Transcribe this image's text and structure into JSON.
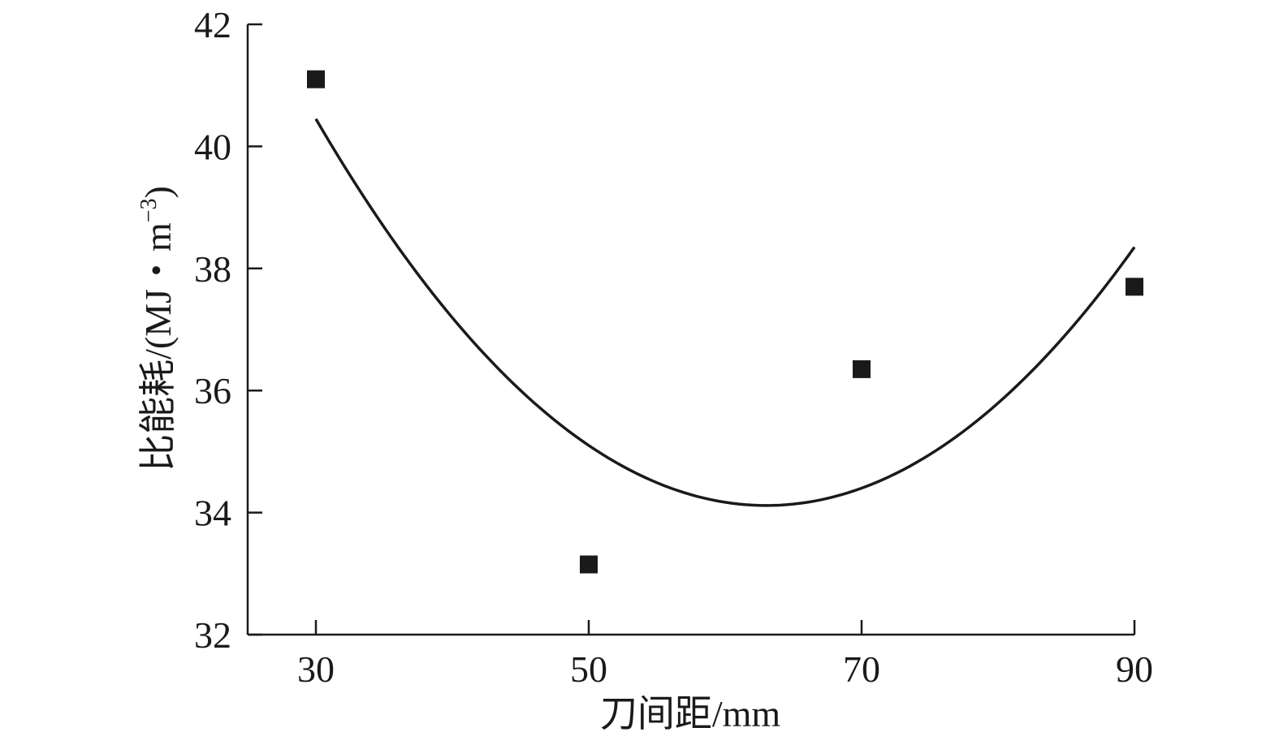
{
  "chart_data": {
    "type": "scatter",
    "x": [
      30,
      50,
      70,
      90
    ],
    "y": [
      41.1,
      33.15,
      36.35,
      37.7
    ],
    "xlabel": "刀间距/mm",
    "ylabel": "比能耗/(MJ・m",
    "ylabel_sup": "−3",
    "ylabel_close": ")",
    "xlim": [
      25,
      90
    ],
    "ylim": [
      32,
      42
    ],
    "xticks": [
      30,
      50,
      70,
      90
    ],
    "yticks": [
      32,
      34,
      36,
      38,
      40,
      42
    ],
    "xtick_labels": [
      "30",
      "50",
      "70",
      "90"
    ],
    "ytick_labels": [
      "32",
      "34",
      "36",
      "38",
      "40",
      "42"
    ],
    "fit": {
      "type": "quadratic",
      "x_range": [
        30,
        90
      ],
      "marker": "square",
      "color": "#1a1a1a"
    },
    "grid": false
  }
}
